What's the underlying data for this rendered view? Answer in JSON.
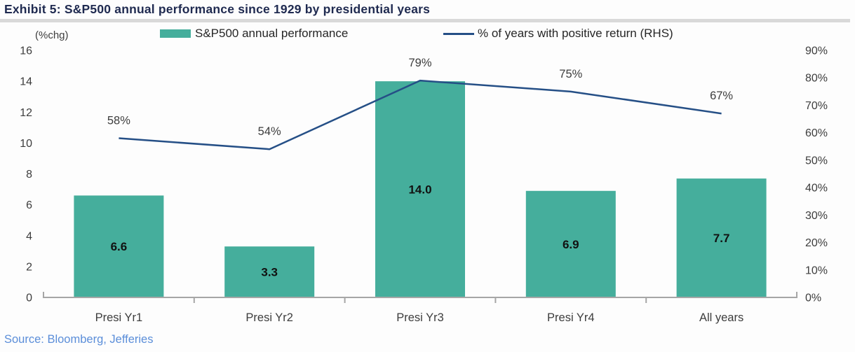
{
  "title": "Exhibit 5: S&P500 annual performance since 1929 by presidential years",
  "source": "Source: Bloomberg, Jefferies",
  "legend": {
    "bar_label": "S&P500 annual performance",
    "line_label": "% of years with positive return (RHS)"
  },
  "colors": {
    "bar": "#45ae9c",
    "line": "#254f86",
    "title": "#1f2a50",
    "source": "#5b8ed9",
    "axis_line": "#a6a6a6",
    "tick_text": "#3d3d3d",
    "bar_label_text": "#111111"
  },
  "chart_data": {
    "type": "bar+line",
    "title": "Exhibit 5: S&P500 annual performance since 1929 by presidential years",
    "categories": [
      "Presi Yr1",
      "Presi Yr2",
      "Presi Yr3",
      "Presi Yr4",
      "All years"
    ],
    "series": [
      {
        "name": "S&P500 annual performance",
        "type": "bar",
        "axis": "left",
        "values": [
          6.6,
          3.3,
          14.0,
          6.9,
          7.7
        ],
        "labels": [
          "6.6",
          "3.3",
          "14.0",
          "6.9",
          "7.7"
        ]
      },
      {
        "name": "% of years with positive return (RHS)",
        "type": "line",
        "axis": "right",
        "values": [
          58,
          54,
          79,
          75,
          67
        ],
        "labels": [
          "58%",
          "54%",
          "79%",
          "75%",
          "67%"
        ]
      }
    ],
    "left_axis": {
      "title": "(%chg)",
      "min": 0,
      "max": 16,
      "step": 2,
      "tick_labels": [
        "0",
        "2",
        "4",
        "6",
        "8",
        "10",
        "12",
        "14",
        "16"
      ]
    },
    "right_axis": {
      "min": 0,
      "max": 90,
      "step": 10,
      "tick_labels": [
        "0%",
        "10%",
        "20%",
        "30%",
        "40%",
        "50%",
        "60%",
        "70%",
        "80%",
        "90%"
      ]
    },
    "legend_position": "top",
    "grid": false
  }
}
